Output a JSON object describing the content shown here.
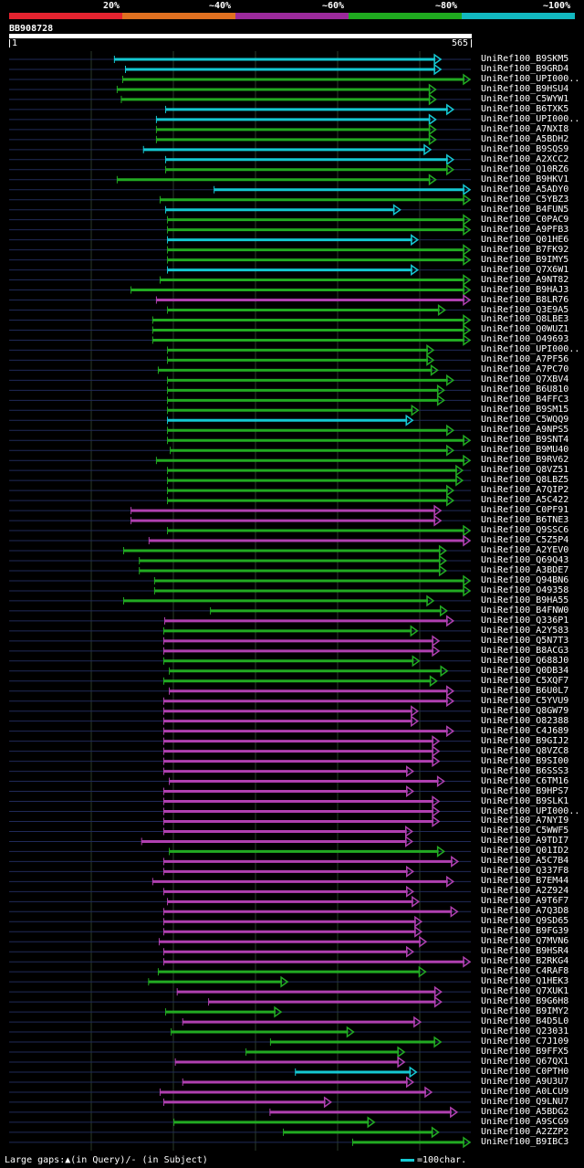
{
  "scale": {
    "segments": [
      {
        "label": "20%",
        "color": "#e4232f"
      },
      {
        "label": "~40%",
        "color": "#e07020"
      },
      {
        "label": "~60%",
        "color": "#9c2a9c"
      },
      {
        "label": "~80%",
        "color": "#1faa1f"
      },
      {
        "label": "~100%",
        "color": "#12b8c0"
      }
    ]
  },
  "query": {
    "name": "BB908728",
    "start": "1",
    "end": "565",
    "length": 565
  },
  "hit_colors": {
    "cyan": "#15c8d2",
    "green": "#22aa22",
    "purple": "#b040b0",
    "guide": "#202a58",
    "grid": "#2a3a2a"
  },
  "hits": [
    {
      "label": "UniRef100_B9SKM5",
      "color": "cyan",
      "start": 0.228,
      "end": 0.935
    },
    {
      "label": "UniRef100_B9GRD4",
      "color": "cyan",
      "start": 0.252,
      "end": 0.935
    },
    {
      "label": "UniRef100_UPI000..",
      "color": "green",
      "start": 0.246,
      "end": 0.998
    },
    {
      "label": "UniRef100_B9HSU4",
      "color": "green",
      "start": 0.234,
      "end": 0.924
    },
    {
      "label": "UniRef100_C5WYW1",
      "color": "green",
      "start": 0.243,
      "end": 0.924
    },
    {
      "label": "UniRef100_B6TXK5",
      "color": "cyan",
      "start": 0.339,
      "end": 0.962
    },
    {
      "label": "UniRef100_UPI000..",
      "color": "cyan",
      "start": 0.319,
      "end": 0.924
    },
    {
      "label": "UniRef100_A7NXI8",
      "color": "green",
      "start": 0.319,
      "end": 0.924
    },
    {
      "label": "UniRef100_A5BDH2",
      "color": "green",
      "start": 0.319,
      "end": 0.924
    },
    {
      "label": "UniRef100_B9SQS9",
      "color": "cyan",
      "start": 0.291,
      "end": 0.913
    },
    {
      "label": "UniRef100_A2XCC2",
      "color": "cyan",
      "start": 0.339,
      "end": 0.962
    },
    {
      "label": "UniRef100_Q10RZ6",
      "color": "green",
      "start": 0.339,
      "end": 0.962
    },
    {
      "label": "UniRef100_B9HKV1",
      "color": "green",
      "start": 0.234,
      "end": 0.924
    },
    {
      "label": "UniRef100_A5ADY0",
      "color": "cyan",
      "start": 0.444,
      "end": 0.998
    },
    {
      "label": "UniRef100_C5YBZ3",
      "color": "green",
      "start": 0.327,
      "end": 0.998
    },
    {
      "label": "UniRef100_B4FUN5",
      "color": "cyan",
      "start": 0.339,
      "end": 0.847
    },
    {
      "label": "UniRef100_C0PAC9",
      "color": "green",
      "start": 0.343,
      "end": 0.998
    },
    {
      "label": "UniRef100_A9PFB3",
      "color": "green",
      "start": 0.343,
      "end": 0.998
    },
    {
      "label": "UniRef100_Q01HE6",
      "color": "cyan",
      "start": 0.343,
      "end": 0.885
    },
    {
      "label": "UniRef100_B7FK92",
      "color": "green",
      "start": 0.343,
      "end": 0.998
    },
    {
      "label": "UniRef100_B9IMY5",
      "color": "green",
      "start": 0.343,
      "end": 0.998
    },
    {
      "label": "UniRef100_Q7X6W1",
      "color": "cyan",
      "start": 0.343,
      "end": 0.885
    },
    {
      "label": "UniRef100_A9NT82",
      "color": "green",
      "start": 0.327,
      "end": 0.998
    },
    {
      "label": "UniRef100_B9HAJ3",
      "color": "green",
      "start": 0.264,
      "end": 0.998
    },
    {
      "label": "UniRef100_B8LR76",
      "color": "purple",
      "start": 0.319,
      "end": 0.998
    },
    {
      "label": "UniRef100_Q3E9A5",
      "color": "green",
      "start": 0.343,
      "end": 0.944
    },
    {
      "label": "UniRef100_Q8LBE3",
      "color": "green",
      "start": 0.311,
      "end": 0.998
    },
    {
      "label": "UniRef100_Q0WUZ1",
      "color": "green",
      "start": 0.311,
      "end": 0.998
    },
    {
      "label": "UniRef100_O49693",
      "color": "green",
      "start": 0.311,
      "end": 0.998
    },
    {
      "label": "UniRef100_UPI000..",
      "color": "green",
      "start": 0.343,
      "end": 0.919
    },
    {
      "label": "UniRef100_A7PF56",
      "color": "green",
      "start": 0.343,
      "end": 0.919
    },
    {
      "label": "UniRef100_A7PC70",
      "color": "green",
      "start": 0.323,
      "end": 0.928
    },
    {
      "label": "UniRef100_Q7XBV4",
      "color": "green",
      "start": 0.343,
      "end": 0.962
    },
    {
      "label": "UniRef100_B6U810",
      "color": "green",
      "start": 0.343,
      "end": 0.942
    },
    {
      "label": "UniRef100_B4FFC3",
      "color": "green",
      "start": 0.343,
      "end": 0.942
    },
    {
      "label": "UniRef100_B9SM15",
      "color": "green",
      "start": 0.343,
      "end": 0.886
    },
    {
      "label": "UniRef100_C5WQQ9",
      "color": "cyan",
      "start": 0.343,
      "end": 0.874
    },
    {
      "label": "UniRef100_A9NPS5",
      "color": "green",
      "start": 0.343,
      "end": 0.962
    },
    {
      "label": "UniRef100_B9SNT4",
      "color": "green",
      "start": 0.343,
      "end": 0.998
    },
    {
      "label": "UniRef100_B9MU40",
      "color": "green",
      "start": 0.349,
      "end": 0.962
    },
    {
      "label": "UniRef100_B9RV62",
      "color": "green",
      "start": 0.319,
      "end": 0.998
    },
    {
      "label": "UniRef100_Q8VZ51",
      "color": "green",
      "start": 0.343,
      "end": 0.982
    },
    {
      "label": "UniRef100_Q8LBZ5",
      "color": "green",
      "start": 0.343,
      "end": 0.982
    },
    {
      "label": "UniRef100_A7QIP2",
      "color": "green",
      "start": 0.343,
      "end": 0.962
    },
    {
      "label": "UniRef100_A5C422",
      "color": "green",
      "start": 0.343,
      "end": 0.962
    },
    {
      "label": "UniRef100_C0PF91",
      "color": "purple",
      "start": 0.264,
      "end": 0.935
    },
    {
      "label": "UniRef100_B6TNE3",
      "color": "purple",
      "start": 0.264,
      "end": 0.935
    },
    {
      "label": "UniRef100_Q9SSC6",
      "color": "green",
      "start": 0.343,
      "end": 0.998
    },
    {
      "label": "UniRef100_C5Z5P4",
      "color": "purple",
      "start": 0.303,
      "end": 0.998
    },
    {
      "label": "UniRef100_A2YEV0",
      "color": "green",
      "start": 0.248,
      "end": 0.946
    },
    {
      "label": "UniRef100_Q69Q43",
      "color": "green",
      "start": 0.282,
      "end": 0.946
    },
    {
      "label": "UniRef100_A3BDE7",
      "color": "green",
      "start": 0.282,
      "end": 0.946
    },
    {
      "label": "UniRef100_Q94BN6",
      "color": "green",
      "start": 0.315,
      "end": 0.998
    },
    {
      "label": "UniRef100_O49358",
      "color": "green",
      "start": 0.315,
      "end": 0.998
    },
    {
      "label": "UniRef100_B9HA55",
      "color": "green",
      "start": 0.248,
      "end": 0.919
    },
    {
      "label": "UniRef100_B4FNW0",
      "color": "green",
      "start": 0.436,
      "end": 0.948
    },
    {
      "label": "UniRef100_Q336P1",
      "color": "purple",
      "start": 0.337,
      "end": 0.962
    },
    {
      "label": "UniRef100_A2Y583",
      "color": "green",
      "start": 0.335,
      "end": 0.884
    },
    {
      "label": "UniRef100_Q5N7T3",
      "color": "purple",
      "start": 0.335,
      "end": 0.931
    },
    {
      "label": "UniRef100_B8ACG3",
      "color": "purple",
      "start": 0.335,
      "end": 0.931
    },
    {
      "label": "UniRef100_Q688J0",
      "color": "green",
      "start": 0.335,
      "end": 0.888
    },
    {
      "label": "UniRef100_Q0DB34",
      "color": "green",
      "start": 0.347,
      "end": 0.949
    },
    {
      "label": "UniRef100_C5XQF7",
      "color": "green",
      "start": 0.335,
      "end": 0.926
    },
    {
      "label": "UniRef100_B6U0L7",
      "color": "purple",
      "start": 0.347,
      "end": 0.962
    },
    {
      "label": "UniRef100_C5YVU9",
      "color": "purple",
      "start": 0.335,
      "end": 0.962
    },
    {
      "label": "UniRef100_Q8GW79",
      "color": "purple",
      "start": 0.335,
      "end": 0.885
    },
    {
      "label": "UniRef100_O82388",
      "color": "purple",
      "start": 0.335,
      "end": 0.885
    },
    {
      "label": "UniRef100_C4J689",
      "color": "purple",
      "start": 0.335,
      "end": 0.962
    },
    {
      "label": "UniRef100_B9GIJ2",
      "color": "purple",
      "start": 0.335,
      "end": 0.931
    },
    {
      "label": "UniRef100_Q8VZC8",
      "color": "purple",
      "start": 0.335,
      "end": 0.931
    },
    {
      "label": "UniRef100_B9SI00",
      "color": "purple",
      "start": 0.335,
      "end": 0.931
    },
    {
      "label": "UniRef100_B6SSS3",
      "color": "purple",
      "start": 0.335,
      "end": 0.875
    },
    {
      "label": "UniRef100_C6TM16",
      "color": "purple",
      "start": 0.347,
      "end": 0.942
    },
    {
      "label": "UniRef100_B9HPS7",
      "color": "purple",
      "start": 0.335,
      "end": 0.875
    },
    {
      "label": "UniRef100_B9SLK1",
      "color": "purple",
      "start": 0.335,
      "end": 0.931
    },
    {
      "label": "UniRef100_UPI000..",
      "color": "purple",
      "start": 0.335,
      "end": 0.931
    },
    {
      "label": "UniRef100_A7NYI9",
      "color": "purple",
      "start": 0.335,
      "end": 0.931
    },
    {
      "label": "UniRef100_C5WWF5",
      "color": "purple",
      "start": 0.335,
      "end": 0.873
    },
    {
      "label": "UniRef100_A9TDI7",
      "color": "purple",
      "start": 0.287,
      "end": 0.873
    },
    {
      "label": "UniRef100_Q01ID2",
      "color": "green",
      "start": 0.347,
      "end": 0.942
    },
    {
      "label": "UniRef100_A5C7B4",
      "color": "purple",
      "start": 0.335,
      "end": 0.972
    },
    {
      "label": "UniRef100_Q337F8",
      "color": "purple",
      "start": 0.335,
      "end": 0.875
    },
    {
      "label": "UniRef100_B7EM44",
      "color": "purple",
      "start": 0.311,
      "end": 0.962
    },
    {
      "label": "UniRef100_A2Z924",
      "color": "purple",
      "start": 0.335,
      "end": 0.875
    },
    {
      "label": "UniRef100_A9T6F7",
      "color": "purple",
      "start": 0.343,
      "end": 0.887
    },
    {
      "label": "UniRef100_A7Q3D8",
      "color": "purple",
      "start": 0.335,
      "end": 0.971
    },
    {
      "label": "UniRef100_Q9SD65",
      "color": "purple",
      "start": 0.335,
      "end": 0.893
    },
    {
      "label": "UniRef100_B9FG39",
      "color": "purple",
      "start": 0.335,
      "end": 0.893
    },
    {
      "label": "UniRef100_Q7MVN6",
      "color": "purple",
      "start": 0.325,
      "end": 0.903
    },
    {
      "label": "UniRef100_B9HSR4",
      "color": "purple",
      "start": 0.335,
      "end": 0.875
    },
    {
      "label": "UniRef100_B2RKG4",
      "color": "purple",
      "start": 0.335,
      "end": 0.998
    },
    {
      "label": "UniRef100_C4RAF8",
      "color": "green",
      "start": 0.323,
      "end": 0.902
    },
    {
      "label": "UniRef100_Q1HEK3",
      "color": "green",
      "start": 0.302,
      "end": 0.603
    },
    {
      "label": "UniRef100_Q7XUK1",
      "color": "purple",
      "start": 0.364,
      "end": 0.936
    },
    {
      "label": "UniRef100_B9G6H8",
      "color": "purple",
      "start": 0.432,
      "end": 0.936
    },
    {
      "label": "UniRef100_B9IMY2",
      "color": "green",
      "start": 0.339,
      "end": 0.589
    },
    {
      "label": "UniRef100_B4D5L0",
      "color": "purple",
      "start": 0.376,
      "end": 0.891
    },
    {
      "label": "UniRef100_Q23031",
      "color": "green",
      "start": 0.351,
      "end": 0.746
    },
    {
      "label": "UniRef100_C7J109",
      "color": "green",
      "start": 0.566,
      "end": 0.935
    },
    {
      "label": "UniRef100_B9FFX5",
      "color": "green",
      "start": 0.513,
      "end": 0.856
    },
    {
      "label": "UniRef100_Q67QX1",
      "color": "purple",
      "start": 0.36,
      "end": 0.856
    },
    {
      "label": "UniRef100_C0PTH0",
      "color": "cyan",
      "start": 0.62,
      "end": 0.882
    },
    {
      "label": "UniRef100_A9U3U7",
      "color": "purple",
      "start": 0.376,
      "end": 0.875
    },
    {
      "label": "UniRef100_A0LCU9",
      "color": "purple",
      "start": 0.327,
      "end": 0.915
    },
    {
      "label": "UniRef100_Q9LNU7",
      "color": "purple",
      "start": 0.335,
      "end": 0.697
    },
    {
      "label": "UniRef100_A5BDG2",
      "color": "purple",
      "start": 0.565,
      "end": 0.97
    },
    {
      "label": "UniRef100_A9SCG9",
      "color": "green",
      "start": 0.357,
      "end": 0.791
    },
    {
      "label": "UniRef100_A2ZZP2",
      "color": "green",
      "start": 0.594,
      "end": 0.93
    },
    {
      "label": "UniRef100_B9IBC3",
      "color": "green",
      "start": 0.744,
      "end": 0.998
    }
  ],
  "footer": {
    "gaps_text": "Large gaps:▲(in Query)/- (in Subject)",
    "legend_label": "=100char.",
    "legend_color": "#15c8d2"
  }
}
